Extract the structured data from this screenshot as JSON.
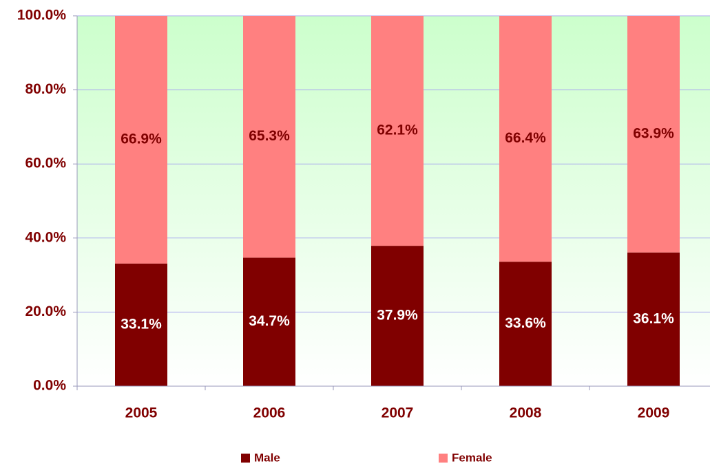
{
  "chart_data": {
    "type": "stacked_bar",
    "categories": [
      "2005",
      "2006",
      "2007",
      "2008",
      "2009"
    ],
    "series": [
      {
        "name": "Male",
        "color": "#800000",
        "values": [
          33.1,
          34.7,
          37.9,
          33.6,
          36.1
        ],
        "value_labels": [
          "33.1%",
          "34.7%",
          "37.9%",
          "33.6%",
          "36.1%"
        ]
      },
      {
        "name": "Female",
        "color": "#ff8080",
        "values": [
          66.9,
          65.3,
          62.1,
          66.4,
          63.9
        ],
        "value_labels": [
          "66.9%",
          "65.3%",
          "62.1%",
          "66.4%",
          "63.9%"
        ]
      }
    ],
    "ylim": [
      0,
      100
    ],
    "yticks": [
      {
        "value": 0,
        "label": "0.0%"
      },
      {
        "value": 20,
        "label": "20.0%"
      },
      {
        "value": 40,
        "label": "40.0%"
      },
      {
        "value": 60,
        "label": "60.0%"
      },
      {
        "value": 80,
        "label": "80.0%"
      },
      {
        "value": 100,
        "label": "100.0%"
      }
    ],
    "grid": true,
    "legend": "bottom"
  }
}
